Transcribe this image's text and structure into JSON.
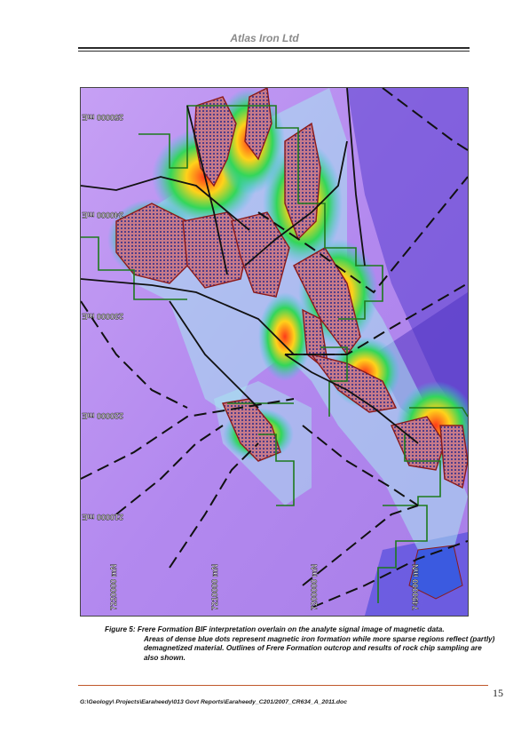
{
  "header": {
    "title": "Atlas Iron Ltd"
  },
  "map": {
    "easting_labels": [
      "250000 mE",
      "240000 mE",
      "230000 mE",
      "220000 mE",
      "210000 mE"
    ],
    "northing_labels": [
      "7220000 mN",
      "7210000 mN",
      "7200000 mN",
      "7490000 mN"
    ]
  },
  "caption": {
    "first_line": "Figure 5: Frere Formation BIF interpretation overlain on the analyte signal image of magnetic data.",
    "rest": "Areas of dense blue dots represent magnetic iron formation while more sparse regions reflect (partly) demagnetized material.  Outlines of Frere Formation outcrop and results of rock chip sampling are also shown."
  },
  "footer": {
    "page_number": "15",
    "path": "G:\\Geology\\ Projects\\Earaheedy\\013 Govt Reports\\Earaheedy_C201/2007_CR634_A_2011.doc"
  },
  "colors": {
    "background_magnetic": "#b98cf0",
    "bif_outline": "#8b1a1a",
    "tenement_outline": "#1d7a1d",
    "fault_lines": "#111111"
  }
}
